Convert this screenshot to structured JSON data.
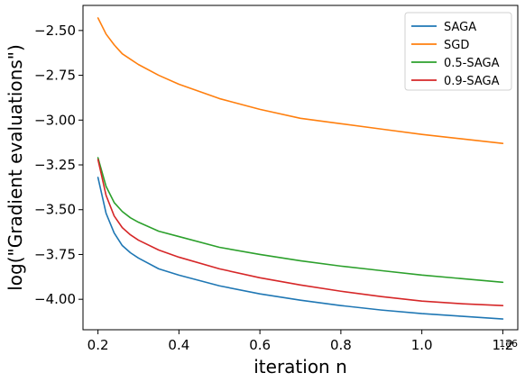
{
  "chart_data": {
    "type": "line",
    "title": "",
    "xlabel": "iteration n",
    "ylabel": "log(\"Gradient evaluations\")",
    "x_offset_label": "1e6",
    "xlim": [
      0.163,
      1.237
    ],
    "ylim": [
      -4.17,
      -2.36
    ],
    "xticks": [
      0.2,
      0.4,
      0.6,
      0.8,
      1.0,
      1.2
    ],
    "xtick_labels": [
      "0.2",
      "0.4",
      "0.6",
      "0.8",
      "1.0",
      "1.2"
    ],
    "yticks": [
      -2.5,
      -2.75,
      -3.0,
      -3.25,
      -3.5,
      -3.75,
      -4.0
    ],
    "ytick_labels": [
      "−2.50",
      "−2.75",
      "−3.00",
      "−3.25",
      "−3.50",
      "−3.75",
      "−4.00"
    ],
    "grid": false,
    "legend_position": "top-right",
    "x": [
      0.2,
      0.22,
      0.24,
      0.26,
      0.28,
      0.3,
      0.35,
      0.4,
      0.5,
      0.6,
      0.7,
      0.8,
      0.9,
      1.0,
      1.1,
      1.2
    ],
    "series": [
      {
        "name": "SAGA",
        "color": "#1f77b4",
        "values": [
          -3.32,
          -3.52,
          -3.63,
          -3.7,
          -3.74,
          -3.77,
          -3.83,
          -3.865,
          -3.925,
          -3.97,
          -4.005,
          -4.035,
          -4.06,
          -4.08,
          -4.095,
          -4.11
        ]
      },
      {
        "name": "SGD",
        "color": "#ff7f0e",
        "values": [
          -2.43,
          -2.52,
          -2.58,
          -2.63,
          -2.66,
          -2.69,
          -2.75,
          -2.8,
          -2.88,
          -2.94,
          -2.99,
          -3.02,
          -3.05,
          -3.08,
          -3.105,
          -3.13
        ]
      },
      {
        "name": "0.5-SAGA",
        "color": "#2ca02c",
        "values": [
          -3.21,
          -3.37,
          -3.46,
          -3.51,
          -3.545,
          -3.57,
          -3.62,
          -3.65,
          -3.71,
          -3.75,
          -3.785,
          -3.815,
          -3.84,
          -3.865,
          -3.885,
          -3.905
        ]
      },
      {
        "name": "0.9-SAGA",
        "color": "#d62728",
        "values": [
          -3.22,
          -3.42,
          -3.535,
          -3.6,
          -3.64,
          -3.67,
          -3.725,
          -3.765,
          -3.83,
          -3.88,
          -3.92,
          -3.955,
          -3.985,
          -4.01,
          -4.025,
          -4.035
        ]
      }
    ]
  }
}
